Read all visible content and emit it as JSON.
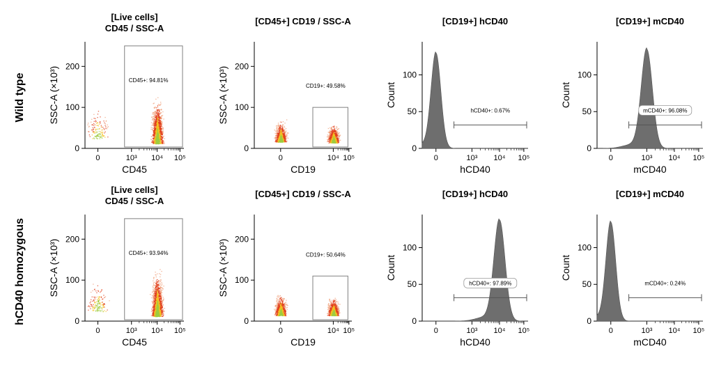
{
  "figure": {
    "row_labels": [
      "Wild type",
      "hCD40 homozygous"
    ]
  },
  "colors": {
    "histogram_fill": "#6e6e6e",
    "density_low": "#f0a07a",
    "density_mid": "#e2401c",
    "density_high": "#f4c020",
    "density_core": "#9fcc40",
    "gate_stroke": "#808080"
  },
  "chart_data": [
    {
      "type": "scatter",
      "row": 0,
      "col": 0,
      "title_lines": [
        "[Live cells]",
        "CD45 / SSC-A"
      ],
      "xlabel": "CD45",
      "ylabel": "SSC-A (×10³)",
      "x_ticks": [
        "0",
        "10³",
        "10⁴",
        "10⁵"
      ],
      "y_ticks": [
        "0",
        "100",
        "200"
      ],
      "ylim": [
        0,
        260
      ],
      "gate": {
        "label": "CD45+: 94.81%",
        "x_range": [
          "10³",
          "10⁵"
        ],
        "y_range": [
          0,
          250
        ]
      },
      "populations": [
        {
          "name": "CD45+ main",
          "x": "10⁴",
          "y_center": 30,
          "y_spread": 170,
          "fraction": 0.9481
        },
        {
          "name": "CD45- background",
          "x": "0",
          "y_center": 60,
          "y_spread": 120,
          "fraction": 0.0519
        }
      ]
    },
    {
      "type": "scatter",
      "row": 0,
      "col": 1,
      "title_lines": [
        "[CD45+] CD19 / SSC-A"
      ],
      "xlabel": "CD19",
      "ylabel": "SSC-A (×10³)",
      "x_ticks": [
        "0",
        "10⁴",
        "10⁵"
      ],
      "y_ticks": [
        "0",
        "100",
        "200"
      ],
      "ylim": [
        0,
        260
      ],
      "gate": {
        "label": "CD19+: 49.58%",
        "y_range": [
          0,
          100
        ]
      },
      "populations": [
        {
          "name": "CD19- cluster",
          "x": "0",
          "y_center": 40,
          "y_spread": 80,
          "fraction": 0.5042
        },
        {
          "name": "CD19+ cluster",
          "x": "10⁴",
          "y_center": 35,
          "y_spread": 70,
          "fraction": 0.4958
        }
      ]
    },
    {
      "type": "histogram",
      "row": 0,
      "col": 2,
      "title_lines": [
        "[CD19+] hCD40"
      ],
      "xlabel": "hCD40",
      "ylabel": "Count",
      "x_ticks": [
        "0",
        "10³",
        "10⁴",
        "10⁵"
      ],
      "y_ticks": [
        "0",
        "50",
        "100"
      ],
      "ylim": [
        0,
        145
      ],
      "peak_position": "0",
      "peak_count": 130,
      "gate": {
        "label": "hCD40+: 0.67%",
        "boxed": false
      }
    },
    {
      "type": "histogram",
      "row": 0,
      "col": 3,
      "title_lines": [
        "[CD19+] mCD40"
      ],
      "xlabel": "mCD40",
      "ylabel": "Count",
      "x_ticks": [
        "0",
        "10³",
        "10⁴",
        "10⁵"
      ],
      "y_ticks": [
        "0",
        "50",
        "100"
      ],
      "ylim": [
        0,
        145
      ],
      "peak_position": "10³",
      "peak_count": 135,
      "gate": {
        "label": "mCD40+: 96.08%",
        "boxed": true
      }
    },
    {
      "type": "scatter",
      "row": 1,
      "col": 0,
      "title_lines": [
        "[Live cells]",
        "CD45 / SSC-A"
      ],
      "xlabel": "CD45",
      "ylabel": "SSC-A (×10³)",
      "x_ticks": [
        "0",
        "10³",
        "10⁴",
        "10⁵"
      ],
      "y_ticks": [
        "0",
        "100",
        "200"
      ],
      "ylim": [
        0,
        260
      ],
      "gate": {
        "label": "CD45+: 93.94%",
        "x_range": [
          "10³",
          "10⁵"
        ],
        "y_range": [
          0,
          250
        ]
      },
      "populations": [
        {
          "name": "CD45+ main",
          "x": "10⁴",
          "y_center": 30,
          "y_spread": 170,
          "fraction": 0.9394
        },
        {
          "name": "CD45- background",
          "x": "0",
          "y_center": 60,
          "y_spread": 120,
          "fraction": 0.0606
        }
      ]
    },
    {
      "type": "scatter",
      "row": 1,
      "col": 1,
      "title_lines": [
        "[CD45+] CD19 / SSC-A"
      ],
      "xlabel": "CD19",
      "ylabel": "SSC-A (×10³)",
      "x_ticks": [
        "0",
        "10⁴",
        "10⁵"
      ],
      "y_ticks": [
        "0",
        "100",
        "200"
      ],
      "ylim": [
        0,
        260
      ],
      "gate": {
        "label": "CD19+: 50.64%",
        "y_range": [
          0,
          110
        ]
      },
      "populations": [
        {
          "name": "CD19- cluster",
          "x": "0",
          "y_center": 35,
          "y_spread": 80,
          "fraction": 0.4936
        },
        {
          "name": "CD19+ cluster",
          "x": "10⁴",
          "y_center": 35,
          "y_spread": 70,
          "fraction": 0.5064
        }
      ]
    },
    {
      "type": "histogram",
      "row": 1,
      "col": 2,
      "title_lines": [
        "[CD19+] hCD40"
      ],
      "xlabel": "hCD40",
      "ylabel": "Count",
      "x_ticks": [
        "0",
        "10³",
        "10⁴",
        "10⁵"
      ],
      "y_ticks": [
        "0",
        "50",
        "100"
      ],
      "ylim": [
        0,
        145
      ],
      "peak_position": "10⁴",
      "peak_count": 138,
      "gate": {
        "label": "hCD40+: 97.89%",
        "boxed": true
      }
    },
    {
      "type": "histogram",
      "row": 1,
      "col": 3,
      "title_lines": [
        "[CD19+] mCD40"
      ],
      "xlabel": "mCD40",
      "ylabel": "Count",
      "x_ticks": [
        "0",
        "10³",
        "10⁴",
        "10⁵"
      ],
      "y_ticks": [
        "0",
        "50",
        "100"
      ],
      "ylim": [
        0,
        145
      ],
      "peak_position": "0",
      "peak_count": 135,
      "gate": {
        "label": "mCD40+: 0.24%",
        "boxed": false
      }
    }
  ]
}
